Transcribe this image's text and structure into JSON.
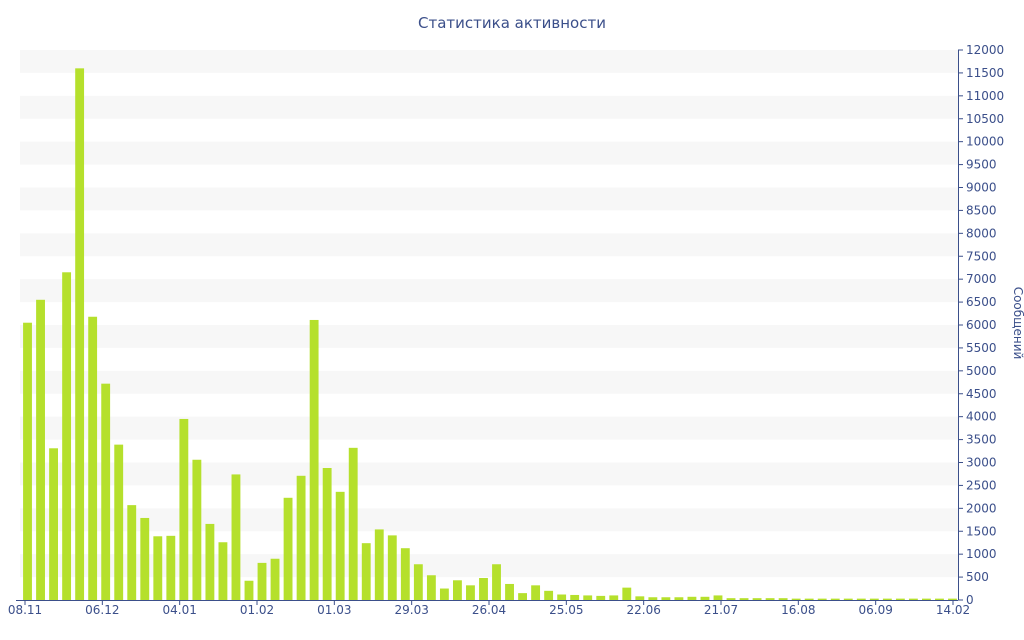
{
  "chart_data": {
    "type": "bar",
    "title": "Статистика активности",
    "xlabel": "",
    "ylabel": "Сообщений",
    "y_axis_side": "right",
    "ylim": [
      0,
      12000
    ],
    "ytick_step": 500,
    "bar_color": "#b5e02c",
    "band_color": "#f7f7f7",
    "axis_color": "#3b4f8a",
    "x_tick_labels": [
      "08.11",
      "06.12",
      "04.01",
      "01.02",
      "01.03",
      "29.03",
      "26.04",
      "25.05",
      "22.06",
      "21.07",
      "16.08",
      "06.09",
      "14.02"
    ],
    "values": [
      6050,
      6550,
      3310,
      7150,
      11600,
      6180,
      4720,
      3390,
      2070,
      1790,
      1390,
      1400,
      3950,
      3060,
      1660,
      1260,
      2740,
      420,
      810,
      900,
      2230,
      2710,
      6110,
      2880,
      2360,
      3320,
      1240,
      1540,
      1410,
      1130,
      780,
      540,
      250,
      430,
      320,
      480,
      780,
      350,
      150,
      320,
      200,
      120,
      110,
      100,
      90,
      100,
      270,
      80,
      60,
      60,
      60,
      70,
      70,
      100,
      40,
      40,
      40,
      40,
      40,
      30,
      30,
      30,
      30,
      30,
      30,
      30,
      30,
      30,
      30,
      30,
      30,
      30
    ]
  }
}
